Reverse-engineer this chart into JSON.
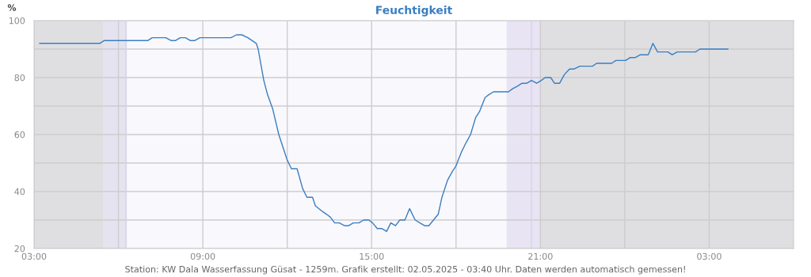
{
  "chart_data": {
    "type": "line",
    "title": "Feuchtigkeit",
    "ylabel": "%",
    "annotations": [
      "Station: KW Dala Wasserfassung Güsat - 1259m. Grafik erstellt: 02.05.2025 - 03:40 Uhr. Daten werden automatisch gemessen!"
    ],
    "series": [
      {
        "color": "#3a7ebf",
        "x": [
          "2025-05-01T03:12",
          "2025-05-01T05:20",
          "2025-05-01T05:30",
          "2025-05-01T07:03",
          "2025-05-01T07:12",
          "2025-05-01T07:41",
          "2025-05-01T07:52",
          "2025-05-01T08:02",
          "2025-05-01T08:12",
          "2025-05-01T08:23",
          "2025-05-01T08:33",
          "2025-05-01T08:43",
          "2025-05-01T08:54",
          "2025-05-01T10:00",
          "2025-05-01T10:12",
          "2025-05-01T10:23",
          "2025-05-01T10:36",
          "2025-05-01T10:54",
          "2025-05-01T10:58",
          "2025-05-01T11:10",
          "2025-05-01T11:18",
          "2025-05-01T11:29",
          "2025-05-01T11:42",
          "2025-05-01T11:52",
          "2025-05-01T12:00",
          "2025-05-01T12:09",
          "2025-05-01T12:21",
          "2025-05-01T12:33",
          "2025-05-01T12:42",
          "2025-05-01T12:54",
          "2025-05-01T13:00",
          "2025-05-01T13:15",
          "2025-05-01T13:24",
          "2025-05-01T13:32",
          "2025-05-01T13:41",
          "2025-05-01T13:51",
          "2025-05-01T14:02",
          "2025-05-01T14:11",
          "2025-05-01T14:21",
          "2025-05-01T14:33",
          "2025-05-01T14:43",
          "2025-05-01T14:54",
          "2025-05-01T15:02",
          "2025-05-01T15:12",
          "2025-05-01T15:22",
          "2025-05-01T15:32",
          "2025-05-01T15:41",
          "2025-05-01T15:51",
          "2025-05-01T16:00",
          "2025-05-01T16:11",
          "2025-05-01T16:21",
          "2025-05-01T16:33",
          "2025-05-01T16:43",
          "2025-05-01T16:53",
          "2025-05-01T17:02",
          "2025-05-01T17:12",
          "2025-05-01T17:22",
          "2025-05-01T17:30",
          "2025-05-01T17:42",
          "2025-05-01T17:52",
          "2025-05-01T18:00",
          "2025-05-01T18:12",
          "2025-05-01T18:21",
          "2025-05-01T18:31",
          "2025-05-01T18:42",
          "2025-05-01T18:50",
          "2025-05-01T19:02",
          "2025-05-01T19:10",
          "2025-05-01T19:20",
          "2025-05-01T19:32",
          "2025-05-01T19:52",
          "2025-05-01T20:00",
          "2025-05-01T20:11",
          "2025-05-01T20:21",
          "2025-05-01T20:31",
          "2025-05-01T20:41",
          "2025-05-01T20:52",
          "2025-05-01T21:02",
          "2025-05-01T21:10",
          "2025-05-01T21:22",
          "2025-05-01T21:30",
          "2025-05-01T21:41",
          "2025-05-01T21:51",
          "2025-05-01T22:02",
          "2025-05-01T22:12",
          "2025-05-01T22:24",
          "2025-05-01T22:30",
          "2025-05-01T22:51",
          "2025-05-01T23:00",
          "2025-05-01T23:32",
          "2025-05-01T23:41",
          "2025-05-02T00:02",
          "2025-05-02T00:11",
          "2025-05-02T00:22",
          "2025-05-02T00:33",
          "2025-05-02T00:50",
          "2025-05-02T01:00",
          "2025-05-02T01:10",
          "2025-05-02T01:32",
          "2025-05-02T01:41",
          "2025-05-02T01:52",
          "2025-05-02T02:31",
          "2025-05-02T02:40",
          "2025-05-02T03:40"
        ],
        "values": [
          92,
          92,
          93,
          93,
          94,
          94,
          93,
          93,
          94,
          94,
          93,
          93,
          94,
          94,
          95,
          95,
          94,
          92,
          90,
          79,
          74,
          69,
          60,
          55,
          51,
          48,
          48,
          41,
          38,
          38,
          35,
          33,
          32,
          31,
          29,
          29,
          28,
          28,
          29,
          29,
          30,
          30,
          29,
          27,
          27,
          26,
          29,
          28,
          30,
          30,
          34,
          30,
          29,
          28,
          28,
          30,
          32,
          38,
          44,
          47,
          49,
          54,
          57,
          60,
          66,
          68,
          73,
          74,
          75,
          75,
          75,
          76,
          77,
          78,
          78,
          79,
          78,
          79,
          80,
          80,
          78,
          78,
          81,
          83,
          83,
          84,
          84,
          84,
          85,
          85,
          86,
          86,
          87,
          87,
          88,
          88,
          92,
          89,
          89,
          88,
          89,
          89,
          90,
          90
        ]
      }
    ],
    "xlim": [
      "2025-05-01T03:00",
      "2025-05-02T06:00"
    ],
    "xticks": [
      {
        "value": "2025-05-01T03:00",
        "label": "03:00"
      },
      {
        "value": "2025-05-01T06:00",
        "label": null
      },
      {
        "value": "2025-05-01T09:00",
        "label": "09:00"
      },
      {
        "value": "2025-05-01T12:00",
        "label": null
      },
      {
        "value": "2025-05-01T15:00",
        "label": "15:00"
      },
      {
        "value": "2025-05-01T18:00",
        "label": null
      },
      {
        "value": "2025-05-01T21:00",
        "label": "21:00"
      },
      {
        "value": "2025-05-02T00:00",
        "label": null
      },
      {
        "value": "2025-05-02T03:00",
        "label": "03:00"
      }
    ],
    "ylim": [
      20,
      100
    ],
    "yticks": [
      20,
      {
        "value": 30,
        "label": null
      },
      40,
      {
        "value": 50,
        "label": null
      },
      60,
      {
        "value": 70,
        "label": null
      },
      80,
      {
        "value": 90,
        "label": null
      },
      100
    ],
    "grid": true,
    "bands": [
      {
        "axis": "x",
        "from": "2025-05-01T03:00",
        "to": "2025-05-01T05:27",
        "color": "#dfdfe2"
      },
      {
        "axis": "x",
        "from": "2025-05-01T05:27",
        "to": "2025-05-01T06:18",
        "color": "#e5e3f0"
      },
      {
        "axis": "x",
        "from": "2025-05-01T19:48",
        "to": "2025-05-01T21:00",
        "color": "#e8e4f4"
      },
      {
        "axis": "x",
        "from": "2025-05-01T21:00",
        "to": "2025-05-02T06:00",
        "color": "#dfdfe2"
      }
    ],
    "ref_lines": [
      {
        "axis": "x",
        "value": "2025-05-01T06:16",
        "color": "#d8d4e6"
      },
      {
        "axis": "x",
        "value": "2025-05-01T20:41",
        "color": "#d8d4e6"
      }
    ]
  }
}
